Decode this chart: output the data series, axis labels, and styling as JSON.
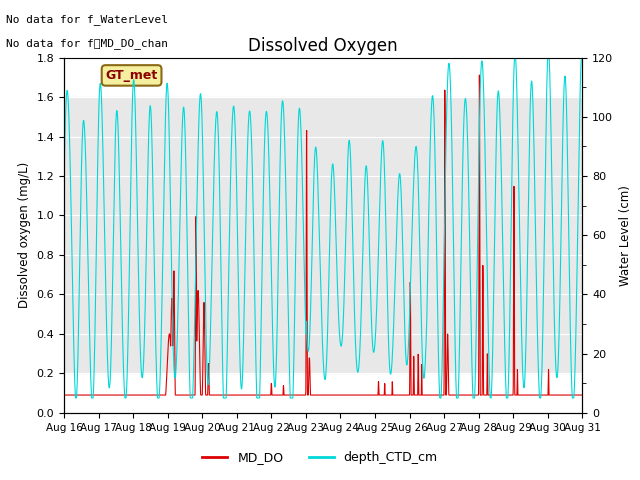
{
  "title": "Dissolved Oxygen",
  "ylabel_left": "Dissolved oxygen (mg/L)",
  "ylabel_right": "Water Level (cm)",
  "text_line1": "No data for f_WaterLevel",
  "text_line2": "No data for f͟MD_DO_chan",
  "legend_label_box": "GT_met",
  "ylim_left": [
    0.0,
    1.8
  ],
  "ylim_right": [
    0,
    120
  ],
  "yticks_left": [
    0.0,
    0.2,
    0.4,
    0.6,
    0.8,
    1.0,
    1.2,
    1.4,
    1.6,
    1.8
  ],
  "yticks_right": [
    0,
    20,
    40,
    60,
    80,
    100,
    120
  ],
  "shaded_region": [
    0.2,
    1.6
  ],
  "md_do_color": "#dd0000",
  "depth_ctd_color": "#00d8d8",
  "background_color": "#ffffff",
  "shaded_color": "#e8e8e8",
  "legend_entries": [
    "MD_DO",
    "depth_CTD_cm"
  ],
  "legend_colors": [
    "#dd0000",
    "#00d8d8"
  ],
  "fig_width": 6.4,
  "fig_height": 4.8,
  "dpi": 100
}
